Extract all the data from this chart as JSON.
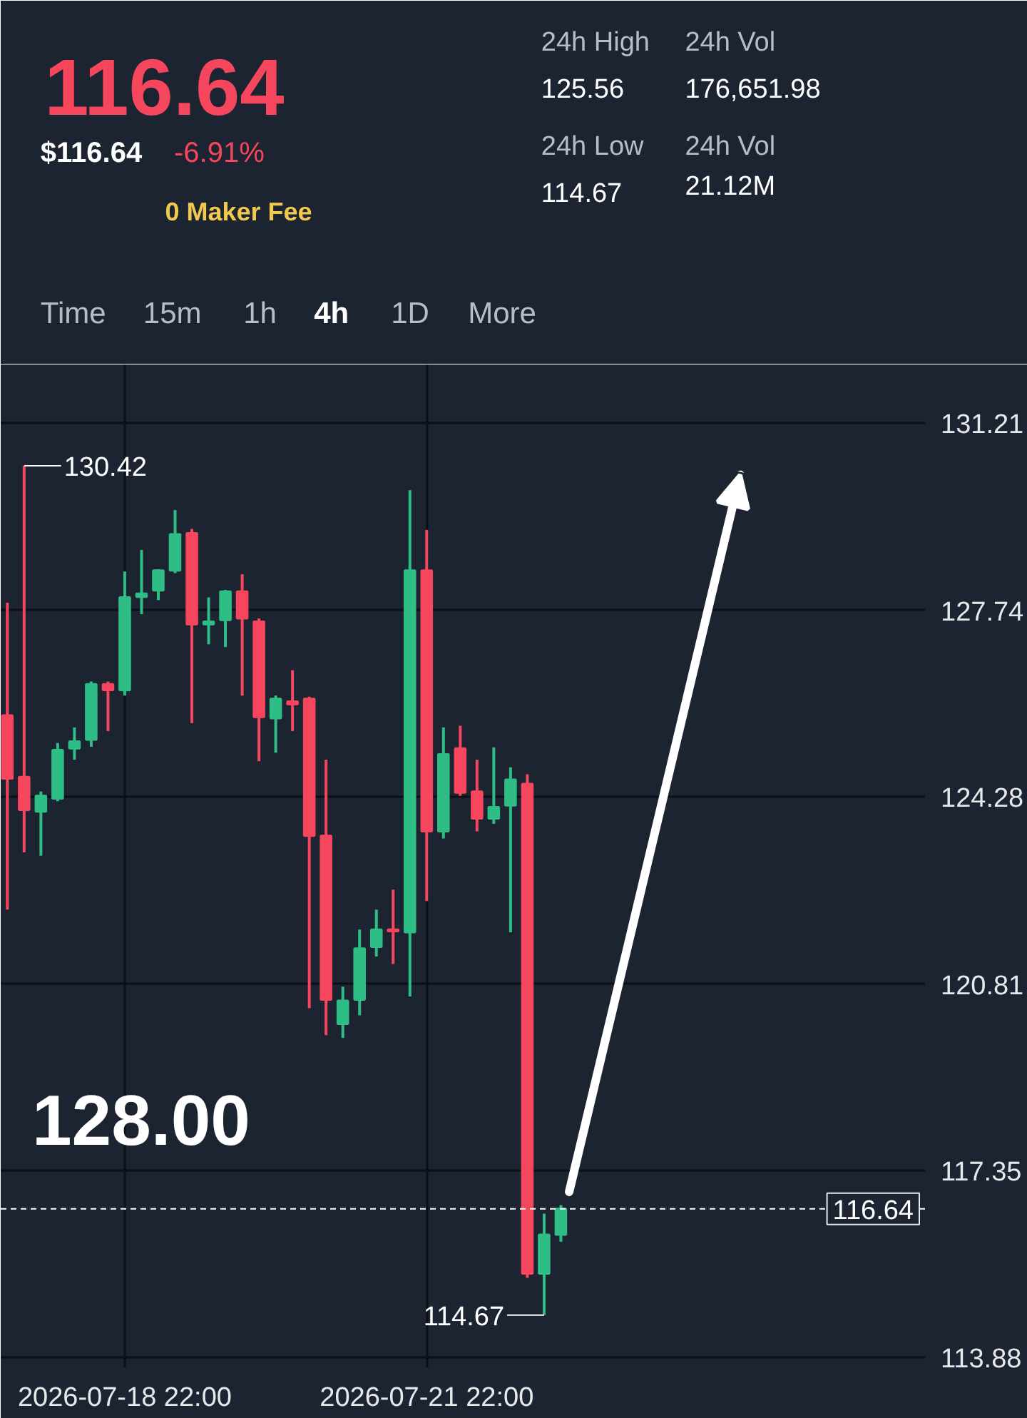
{
  "chart_data": {
    "type": "candlestick",
    "title": "116.64",
    "x": [
      "2026-07-17T18:00",
      "2026-07-17T22:00",
      "2026-07-18T02:00",
      "2026-07-18T06:00",
      "2026-07-18T10:00",
      "2026-07-18T14:00",
      "2026-07-18T18:00",
      "2026-07-18T22:00",
      "2026-07-19T02:00",
      "2026-07-19T06:00",
      "2026-07-19T10:00",
      "2026-07-19T14:00",
      "2026-07-19T18:00",
      "2026-07-19T22:00",
      "2026-07-20T02:00",
      "2026-07-20T06:00",
      "2026-07-20T10:00",
      "2026-07-20T14:00",
      "2026-07-20T18:00",
      "2026-07-20T22:00",
      "2026-07-21T02:00",
      "2026-07-21T06:00",
      "2026-07-21T10:00",
      "2026-07-21T14:00",
      "2026-07-21T18:00",
      "2026-07-21T22:00",
      "2026-07-22T02:00",
      "2026-07-22T06:00",
      "2026-07-22T10:00",
      "2026-07-22T14:00",
      "2026-07-22T18:00",
      "2026-07-22T22:00",
      "2026-07-23T02:00",
      "2026-07-23T06:00"
    ],
    "ohlc": [
      [
        125.79,
        127.88,
        122.19,
        124.62
      ],
      [
        124.65,
        130.42,
        123.25,
        124.04
      ],
      [
        124.01,
        124.38,
        123.19,
        124.3
      ],
      [
        124.25,
        125.28,
        124.2,
        125.15
      ],
      [
        125.18,
        125.57,
        124.97,
        125.31
      ],
      [
        125.34,
        126.42,
        125.21,
        126.37
      ],
      [
        126.37,
        126.42,
        125.5,
        126.26
      ],
      [
        126.26,
        128.46,
        126.16,
        127.98
      ],
      [
        127.99,
        128.86,
        127.67,
        128.05
      ],
      [
        128.11,
        128.5,
        127.93,
        128.48
      ],
      [
        128.48,
        129.6,
        128.43,
        129.15
      ],
      [
        129.17,
        129.25,
        125.65,
        127.48
      ],
      [
        127.48,
        127.98,
        127.11,
        127.53
      ],
      [
        127.56,
        128.12,
        127.06,
        128.09
      ],
      [
        128.09,
        128.41,
        126.16,
        127.59
      ],
      [
        127.53,
        127.59,
        124.94,
        125.76
      ],
      [
        125.74,
        126.16,
        125.1,
        126.1
      ],
      [
        126.05,
        126.63,
        125.5,
        126.0
      ],
      [
        126.1,
        126.14,
        120.36,
        123.56
      ],
      [
        123.56,
        124.97,
        119.86,
        120.52
      ],
      [
        120.07,
        120.76,
        119.81,
        120.5
      ],
      [
        120.52,
        121.82,
        120.23,
        121.47
      ],
      [
        121.5,
        122.19,
        121.32,
        121.82
      ],
      [
        121.82,
        122.56,
        121.18,
        121.79
      ],
      [
        121.77,
        129.97,
        120.58,
        128.48
      ],
      [
        128.48,
        129.23,
        122.35,
        123.64
      ],
      [
        123.64,
        125.57,
        123.51,
        125.07
      ],
      [
        125.18,
        125.6,
        124.3,
        124.36
      ],
      [
        124.38,
        124.97,
        123.64,
        123.88
      ],
      [
        123.88,
        125.2,
        123.78,
        124.09
      ],
      [
        124.12,
        124.83,
        121.77,
        124.6
      ],
      [
        124.52,
        124.7,
        115.36,
        115.44
      ],
      [
        115.44,
        116.55,
        114.67,
        116.16
      ],
      [
        116.16,
        116.71,
        116.03,
        116.64
      ]
    ],
    "colors": [
      "#f6465d",
      "#f6465d",
      "#2ebd85",
      "#2ebd85",
      "#2ebd85",
      "#2ebd85",
      "#f6465d",
      "#2ebd85",
      "#2ebd85",
      "#2ebd85",
      "#2ebd85",
      "#f6465d",
      "#2ebd85",
      "#2ebd85",
      "#f6465d",
      "#f6465d",
      "#2ebd85",
      "#f6465d",
      "#f6465d",
      "#f6465d",
      "#2ebd85",
      "#2ebd85",
      "#2ebd85",
      "#f6465d",
      "#2ebd85",
      "#f6465d",
      "#2ebd85",
      "#f6465d",
      "#f6465d",
      "#2ebd85",
      "#2ebd85",
      "#f6465d",
      "#2ebd85",
      "#2ebd85"
    ],
    "xlim": [
      "2026-07-17T16:25",
      "2026-07-26T20:50"
    ],
    "xticks": [
      {
        "value": "2026-07-18T22:00",
        "label": "2026-07-18 22:00"
      },
      {
        "value": "2026-07-21T22:00",
        "label": "2026-07-21 22:00"
      }
    ],
    "ylim": [
      113.7,
      132.3
    ],
    "yticks": [
      113.88,
      117.35,
      120.81,
      124.28,
      127.74,
      131.21
    ],
    "grid": true,
    "ref_lines": [
      {
        "axis": "y",
        "value": 116.64,
        "label": "116.64",
        "color": "#ffffff",
        "line_style": "dashed"
      }
    ],
    "annotations": [
      {
        "text": "130.42",
        "x": "2026-07-17T22:00",
        "y": 130.42
      },
      {
        "text": "114.67",
        "x": "2026-07-23T02:00",
        "y": 114.67
      },
      "$116.64",
      "-6.91%",
      "0 Maker Fee",
      "24h High",
      "125.56",
      "24h Vol",
      "176,651.98",
      "24h Low",
      "114.67",
      "24h Vol",
      "21.12M",
      "Time",
      "15m",
      "1h",
      "4h",
      "1D",
      "More",
      "128.00"
    ]
  }
}
